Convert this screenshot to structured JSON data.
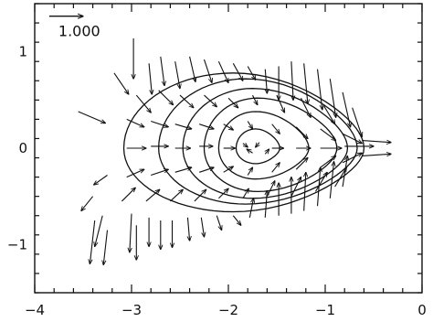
{
  "chart_data": {
    "type": "vector-field with contour overlay",
    "xlim": [
      -4,
      0
    ],
    "ylim": [
      -1.5,
      1.5
    ],
    "x_ticks": [
      {
        "value": -4,
        "label": "−4"
      },
      {
        "value": -3,
        "label": "−3"
      },
      {
        "value": -2,
        "label": "−2"
      },
      {
        "value": -1,
        "label": "−1"
      },
      {
        "value": 0,
        "label": "0"
      }
    ],
    "y_ticks": [
      {
        "value": -1,
        "label": "−1"
      },
      {
        "value": 0,
        "label": "0"
      },
      {
        "value": 1,
        "label": "1"
      }
    ],
    "x_minor_step": 0.2,
    "y_minor_step": 0.2,
    "title": "",
    "xlabel": "",
    "ylabel": "",
    "grid": false,
    "scale_arrow": {
      "label": "1.000",
      "x": -3.85,
      "y": 1.37,
      "dx": 0.35,
      "dy": 0
    },
    "contours": [
      {
        "level": 1,
        "cx": -1.95,
        "cy": 0.0,
        "a_left": 1.13,
        "a_right": 1.35,
        "b_top": 0.78,
        "b_bottom": 0.66
      },
      {
        "level": 2,
        "cx": -1.82,
        "cy": 0.0,
        "a_left": 0.9,
        "a_right": 1.15,
        "b_top": 0.72,
        "b_bottom": 0.58
      },
      {
        "level": 3,
        "cx": -1.75,
        "cy": 0.0,
        "a_left": 0.72,
        "a_right": 0.98,
        "b_top": 0.62,
        "b_bottom": 0.52
      },
      {
        "level": 4,
        "cx": -1.7,
        "cy": 0.0,
        "a_left": 0.55,
        "a_right": 0.82,
        "b_top": 0.52,
        "b_bottom": 0.45
      },
      {
        "level": 5,
        "cx": -1.72,
        "cy": 0.0,
        "a_left": 0.38,
        "a_right": 0.55,
        "b_top": 0.38,
        "b_bottom": 0.32
      },
      {
        "level": 6,
        "cx": -1.72,
        "cy": 0.0,
        "a_left": 0.2,
        "a_right": 0.25,
        "b_top": 0.2,
        "b_bottom": 0.16
      }
    ],
    "vectors": [
      {
        "x": -3.55,
        "y": 0.38,
        "dx": 0.28,
        "dy": -0.12
      },
      {
        "x": -2.98,
        "y": 1.14,
        "dx": 0.0,
        "dy": -0.42
      },
      {
        "x": -2.82,
        "y": 0.88,
        "dx": 0.03,
        "dy": -0.32
      },
      {
        "x": -2.7,
        "y": 0.95,
        "dx": 0.04,
        "dy": -0.3
      },
      {
        "x": -2.55,
        "y": 0.9,
        "dx": 0.05,
        "dy": -0.28
      },
      {
        "x": -2.4,
        "y": 0.95,
        "dx": 0.06,
        "dy": -0.26
      },
      {
        "x": -2.25,
        "y": 0.92,
        "dx": 0.08,
        "dy": -0.24
      },
      {
        "x": -2.1,
        "y": 0.9,
        "dx": 0.1,
        "dy": -0.22
      },
      {
        "x": -1.95,
        "y": 0.88,
        "dx": 0.1,
        "dy": -0.18
      },
      {
        "x": -1.8,
        "y": 0.85,
        "dx": 0.08,
        "dy": -0.14
      },
      {
        "x": -1.62,
        "y": 0.82,
        "dx": 0.02,
        "dy": -0.25
      },
      {
        "x": -1.48,
        "y": 0.85,
        "dx": 0.0,
        "dy": -0.35
      },
      {
        "x": -1.35,
        "y": 0.9,
        "dx": 0.02,
        "dy": -0.4
      },
      {
        "x": -1.22,
        "y": 0.88,
        "dx": 0.04,
        "dy": -0.42
      },
      {
        "x": -1.08,
        "y": 0.82,
        "dx": 0.05,
        "dy": -0.42
      },
      {
        "x": -0.95,
        "y": 0.72,
        "dx": 0.06,
        "dy": -0.4
      },
      {
        "x": -0.82,
        "y": 0.58,
        "dx": 0.08,
        "dy": -0.36
      },
      {
        "x": -0.72,
        "y": 0.42,
        "dx": 0.1,
        "dy": -0.3
      },
      {
        "x": -3.18,
        "y": 0.78,
        "dx": 0.15,
        "dy": -0.22
      },
      {
        "x": -2.95,
        "y": 0.55,
        "dx": 0.15,
        "dy": -0.18
      },
      {
        "x": -2.72,
        "y": 0.6,
        "dx": 0.15,
        "dy": -0.15
      },
      {
        "x": -2.5,
        "y": 0.55,
        "dx": 0.14,
        "dy": -0.13
      },
      {
        "x": -2.25,
        "y": 0.55,
        "dx": 0.13,
        "dy": -0.12
      },
      {
        "x": -2.0,
        "y": 0.52,
        "dx": 0.1,
        "dy": -0.1
      },
      {
        "x": -1.75,
        "y": 0.55,
        "dx": 0.05,
        "dy": -0.1
      },
      {
        "x": -1.5,
        "y": 0.55,
        "dx": 0.08,
        "dy": -0.18
      },
      {
        "x": -1.25,
        "y": 0.52,
        "dx": 0.1,
        "dy": -0.2
      },
      {
        "x": -1.02,
        "y": 0.45,
        "dx": 0.12,
        "dy": -0.2
      },
      {
        "x": -3.05,
        "y": 0.3,
        "dx": 0.18,
        "dy": -0.08
      },
      {
        "x": -2.8,
        "y": 0.28,
        "dx": 0.18,
        "dy": -0.06
      },
      {
        "x": -2.55,
        "y": 0.25,
        "dx": 0.17,
        "dy": -0.05
      },
      {
        "x": -2.3,
        "y": 0.25,
        "dx": 0.15,
        "dy": -0.05
      },
      {
        "x": -2.05,
        "y": 0.25,
        "dx": 0.1,
        "dy": -0.06
      },
      {
        "x": -1.8,
        "y": 0.28,
        "dx": 0.05,
        "dy": -0.08
      },
      {
        "x": -1.55,
        "y": 0.25,
        "dx": 0.08,
        "dy": -0.1
      },
      {
        "x": -1.3,
        "y": 0.22,
        "dx": 0.12,
        "dy": -0.12
      },
      {
        "x": -1.05,
        "y": 0.2,
        "dx": 0.16,
        "dy": -0.12
      },
      {
        "x": -0.82,
        "y": 0.15,
        "dx": 0.2,
        "dy": -0.1
      },
      {
        "x": -3.05,
        "y": 0.0,
        "dx": 0.2,
        "dy": 0.0
      },
      {
        "x": -2.8,
        "y": 0.02,
        "dx": 0.18,
        "dy": 0.0
      },
      {
        "x": -2.55,
        "y": 0.0,
        "dx": 0.16,
        "dy": 0.0
      },
      {
        "x": -2.3,
        "y": 0.02,
        "dx": 0.14,
        "dy": 0.0
      },
      {
        "x": -2.05,
        "y": 0.0,
        "dx": 0.12,
        "dy": 0.0
      },
      {
        "x": -1.55,
        "y": 0.0,
        "dx": 0.12,
        "dy": 0.0
      },
      {
        "x": -1.3,
        "y": 0.0,
        "dx": 0.15,
        "dy": 0.0
      },
      {
        "x": -1.05,
        "y": 0.0,
        "dx": 0.22,
        "dy": 0.0
      },
      {
        "x": -0.8,
        "y": 0.02,
        "dx": 0.3,
        "dy": 0.0
      },
      {
        "x": -0.62,
        "y": 0.08,
        "dx": 0.3,
        "dy": -0.02
      },
      {
        "x": -0.62,
        "y": -0.08,
        "dx": 0.3,
        "dy": 0.02
      },
      {
        "x": -3.05,
        "y": -0.3,
        "dx": 0.18,
        "dy": 0.08
      },
      {
        "x": -2.8,
        "y": -0.28,
        "dx": 0.18,
        "dy": 0.06
      },
      {
        "x": -2.55,
        "y": -0.25,
        "dx": 0.17,
        "dy": 0.05
      },
      {
        "x": -2.3,
        "y": -0.25,
        "dx": 0.15,
        "dy": 0.05
      },
      {
        "x": -2.05,
        "y": -0.25,
        "dx": 0.1,
        "dy": 0.06
      },
      {
        "x": -1.8,
        "y": -0.28,
        "dx": 0.05,
        "dy": 0.08
      },
      {
        "x": -1.55,
        "y": -0.25,
        "dx": 0.08,
        "dy": 0.1
      },
      {
        "x": -1.3,
        "y": -0.22,
        "dx": 0.12,
        "dy": 0.12
      },
      {
        "x": -1.05,
        "y": -0.2,
        "dx": 0.16,
        "dy": 0.12
      },
      {
        "x": -0.82,
        "y": -0.15,
        "dx": 0.2,
        "dy": 0.1
      },
      {
        "x": -3.1,
        "y": -0.55,
        "dx": 0.14,
        "dy": 0.14
      },
      {
        "x": -2.85,
        "y": -0.55,
        "dx": 0.14,
        "dy": 0.12
      },
      {
        "x": -2.6,
        "y": -0.55,
        "dx": 0.13,
        "dy": 0.12
      },
      {
        "x": -2.35,
        "y": -0.55,
        "dx": 0.12,
        "dy": 0.12
      },
      {
        "x": -2.1,
        "y": -0.52,
        "dx": 0.1,
        "dy": 0.1
      },
      {
        "x": -1.85,
        "y": -0.52,
        "dx": 0.06,
        "dy": 0.1
      },
      {
        "x": -1.6,
        "y": -0.5,
        "dx": 0.08,
        "dy": 0.16
      },
      {
        "x": -1.35,
        "y": -0.5,
        "dx": 0.1,
        "dy": 0.2
      },
      {
        "x": -1.1,
        "y": -0.45,
        "dx": 0.12,
        "dy": 0.2
      },
      {
        "x": -0.9,
        "y": -0.4,
        "dx": 0.12,
        "dy": 0.2
      },
      {
        "x": -3.25,
        "y": -0.28,
        "dx": -0.14,
        "dy": -0.1
      },
      {
        "x": -3.4,
        "y": -0.5,
        "dx": -0.12,
        "dy": -0.15
      },
      {
        "x": -3.3,
        "y": -0.7,
        "dx": -0.08,
        "dy": -0.32
      },
      {
        "x": -3.25,
        "y": -0.85,
        "dx": -0.04,
        "dy": -0.36
      },
      {
        "x": -3.38,
        "y": -0.75,
        "dx": -0.05,
        "dy": -0.45
      },
      {
        "x": -3.0,
        "y": -0.68,
        "dx": -0.02,
        "dy": -0.4
      },
      {
        "x": -2.95,
        "y": -0.8,
        "dx": 0.0,
        "dy": -0.36
      },
      {
        "x": -2.82,
        "y": -0.72,
        "dx": 0.0,
        "dy": -0.3
      },
      {
        "x": -2.7,
        "y": -0.75,
        "dx": 0.0,
        "dy": -0.3
      },
      {
        "x": -2.58,
        "y": -0.75,
        "dx": 0.0,
        "dy": -0.28
      },
      {
        "x": -2.42,
        "y": -0.72,
        "dx": 0.02,
        "dy": -0.24
      },
      {
        "x": -2.28,
        "y": -0.72,
        "dx": 0.03,
        "dy": -0.2
      },
      {
        "x": -2.12,
        "y": -0.7,
        "dx": 0.05,
        "dy": -0.15
      },
      {
        "x": -1.95,
        "y": -0.7,
        "dx": 0.08,
        "dy": -0.1
      },
      {
        "x": -1.78,
        "y": -0.72,
        "dx": 0.04,
        "dy": 0.2
      },
      {
        "x": -1.62,
        "y": -0.72,
        "dx": 0.02,
        "dy": 0.28
      },
      {
        "x": -1.48,
        "y": -0.7,
        "dx": 0.0,
        "dy": 0.34
      },
      {
        "x": -1.35,
        "y": -0.68,
        "dx": 0.0,
        "dy": 0.38
      },
      {
        "x": -1.22,
        "y": -0.65,
        "dx": 0.02,
        "dy": 0.4
      },
      {
        "x": -1.08,
        "y": -0.6,
        "dx": 0.03,
        "dy": 0.4
      },
      {
        "x": -0.95,
        "y": -0.52,
        "dx": 0.04,
        "dy": 0.38
      },
      {
        "x": -0.82,
        "y": -0.4,
        "dx": 0.05,
        "dy": 0.32
      },
      {
        "x": -1.75,
        "y": -0.05,
        "dx": -0.06,
        "dy": 0.04
      },
      {
        "x": -1.68,
        "y": 0.06,
        "dx": -0.04,
        "dy": -0.05
      },
      {
        "x": -1.85,
        "y": 0.05,
        "dx": 0.05,
        "dy": -0.04
      },
      {
        "x": -1.62,
        "y": -0.06,
        "dx": 0.04,
        "dy": 0.05
      }
    ]
  }
}
